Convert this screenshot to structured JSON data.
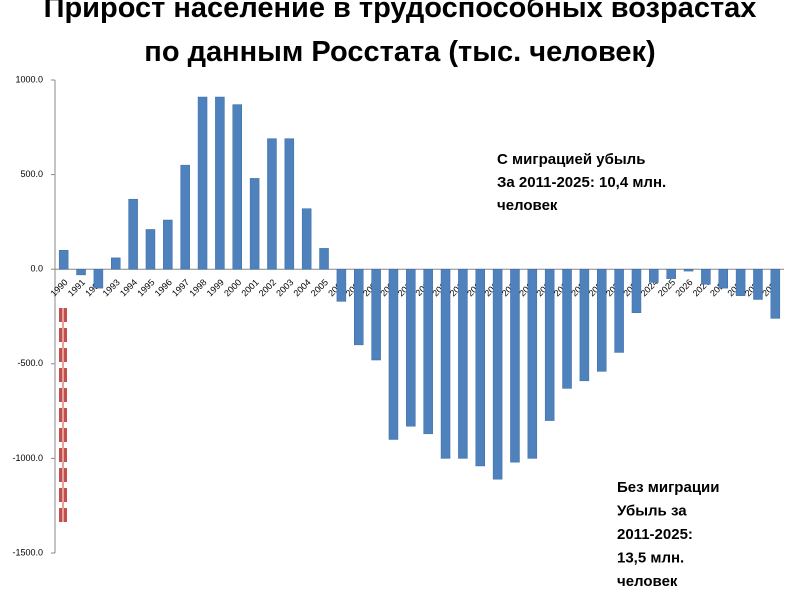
{
  "chart_data": {
    "type": "bar",
    "title": "Прирост население в трудоспособных возрастах  по данным Росстата (тыс. человек)",
    "categories": [
      "1990",
      "1991",
      "1992",
      "1993",
      "1994",
      "1995",
      "1996",
      "1997",
      "1998",
      "1999",
      "2000",
      "2001",
      "2002",
      "2003",
      "2004",
      "2005",
      "2006",
      "2007",
      "2008",
      "2009",
      "2010",
      "2011",
      "2012",
      "2013",
      "2014",
      "2015",
      "2016",
      "2017",
      "2018",
      "2019",
      "2020",
      "2021",
      "2022",
      "2023",
      "2024",
      "2025",
      "2026",
      "2027",
      "2028",
      "2029",
      "2030",
      "2031"
    ],
    "values": [
      100,
      -30,
      -100,
      60,
      370,
      210,
      260,
      550,
      910,
      910,
      870,
      480,
      690,
      690,
      320,
      110,
      -170,
      -400,
      -480,
      -900,
      -830,
      -870,
      -1000,
      -1000,
      -1040,
      -1110,
      -1020,
      -1000,
      -800,
      -630,
      -590,
      -540,
      -440,
      -230,
      -70,
      -50,
      -10,
      -80,
      -100,
      -140,
      -160,
      -260
    ],
    "color": "#4f81bd",
    "ylim": [
      -1500,
      1000
    ],
    "yticks": [
      {
        "value": -1500,
        "label": "-1500.0"
      },
      {
        "value": -1000,
        "label": "-1000.0"
      },
      {
        "value": -500,
        "label": "-500.0"
      },
      {
        "value": 0,
        "label": "0.0"
      },
      {
        "value": 500,
        "label": "500.0"
      },
      {
        "value": 1000,
        "label": "1000.0"
      }
    ],
    "annotations": [
      {
        "lines": [
          "С миграцией убыль",
          "За 2011-2025: 10,4 млн.",
          "человек"
        ],
        "color": "#2e75b6"
      },
      {
        "lines": [
          "Без миграции",
          "Убыль за",
          "2011-2025:",
          "13,5 млн.",
          "человек"
        ],
        "color": "#c00000"
      }
    ]
  }
}
